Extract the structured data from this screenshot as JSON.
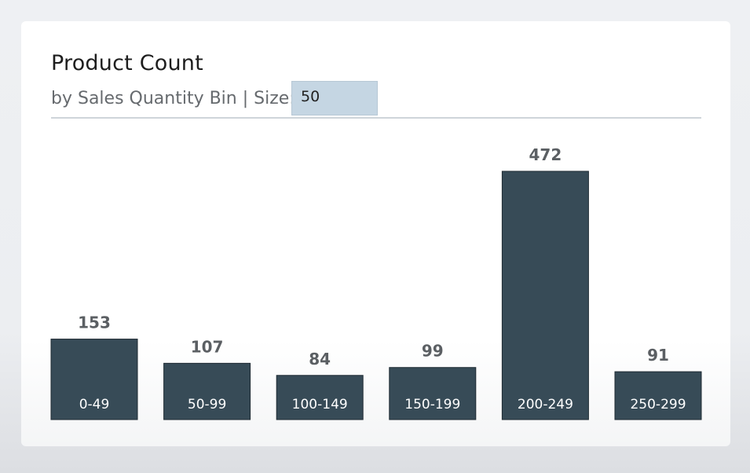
{
  "header": {
    "title": "Product Count",
    "subtitle": "by Sales Quantity Bin | Size:",
    "size_value": "50"
  },
  "colors": {
    "bar": "#374b57",
    "bar_stroke": "#1f2b33"
  },
  "chart_data": {
    "type": "bar",
    "categories": [
      "0-49",
      "50-99",
      "100-149",
      "150-199",
      "200-249",
      "250-299"
    ],
    "values": [
      153,
      107,
      84,
      99,
      472,
      91
    ],
    "title": "Product Count",
    "subtitle": "by Sales Quantity Bin | Size:",
    "xlabel": "",
    "ylabel": "",
    "grid": false,
    "data_labels": true
  }
}
